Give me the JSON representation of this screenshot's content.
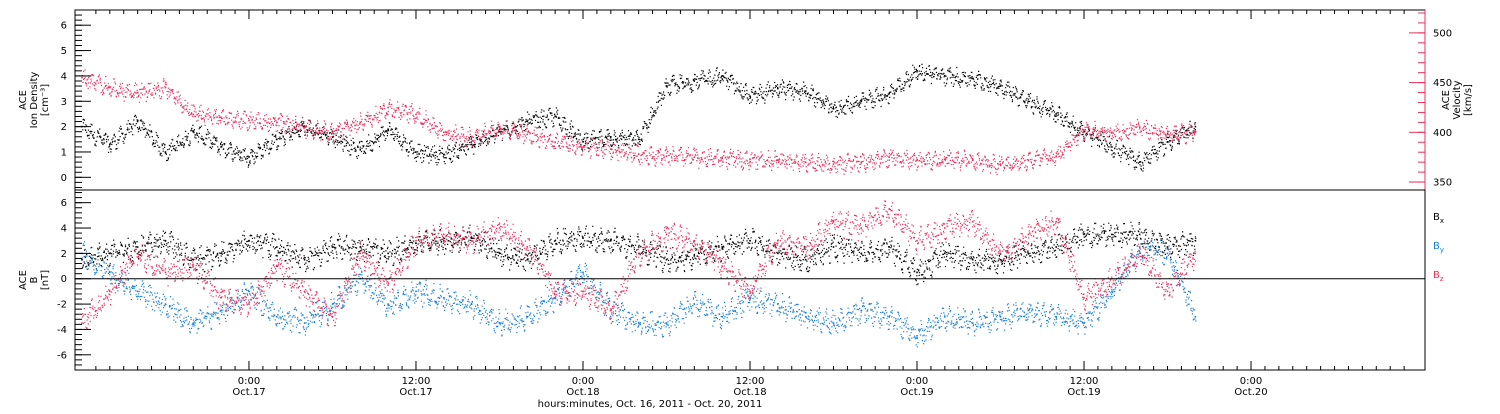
{
  "chart_data": {
    "type": "scatter",
    "x_axis": {
      "title": "hours:minutes, Oct. 16, 2011 - Oct. 20, 2011",
      "range_hours": [
        -12.5,
        84.5
      ],
      "ticks": [
        {
          "hour": 0,
          "time": "0:00",
          "date": "Oct.17"
        },
        {
          "hour": 12,
          "time": "12:00",
          "date": "Oct.17"
        },
        {
          "hour": 24,
          "time": "0:00",
          "date": "Oct.18"
        },
        {
          "hour": 36,
          "time": "12:00",
          "date": "Oct.18"
        },
        {
          "hour": 48,
          "time": "0:00",
          "date": "Oct.19"
        },
        {
          "hour": 60,
          "time": "12:00",
          "date": "Oct.19"
        },
        {
          "hour": 72,
          "time": "0:00",
          "date": "Oct.20"
        }
      ]
    },
    "panels": [
      {
        "id": "density-velocity",
        "left_axis": {
          "label_lines": [
            "ACE",
            "Ion Density",
            "[cm⁻³]"
          ],
          "ylim": [
            -0.5,
            6.6
          ],
          "ticks": [
            0,
            1,
            2,
            3,
            4,
            5,
            6
          ],
          "color": "#000000"
        },
        "right_axis": {
          "label_lines": [
            "ACE",
            "Velocity",
            "[km/s]"
          ],
          "ylim": [
            342,
            523
          ],
          "ticks": [
            350,
            400,
            450,
            500
          ],
          "color": "#e8305a"
        },
        "series": [
          {
            "axis": "left",
            "color": "#000000",
            "x": [
              -12,
              -10,
              -8,
              -6,
              -4,
              -2,
              0,
              2,
              4,
              6,
              8,
              10,
              12,
              14,
              16,
              18,
              20,
              22,
              24,
              26,
              28,
              30,
              32,
              34,
              36,
              38,
              40,
              42,
              44,
              46,
              48,
              50,
              52,
              54,
              56,
              58,
              60,
              62,
              64,
              66,
              68
            ],
            "y": [
              2.0,
              1.3,
              2.2,
              1.0,
              1.8,
              1.2,
              0.8,
              1.5,
              2.0,
              1.6,
              1.1,
              1.9,
              1.0,
              0.9,
              1.3,
              1.8,
              2.2,
              2.4,
              1.4,
              1.6,
              1.5,
              3.6,
              3.8,
              4.0,
              3.2,
              3.5,
              3.4,
              2.7,
              3.0,
              3.3,
              4.2,
              4.0,
              3.9,
              3.6,
              3.0,
              2.5,
              1.8,
              1.2,
              0.6,
              1.4,
              2.0
            ]
          },
          {
            "axis": "right",
            "color": "#e8305a",
            "x": [
              -12,
              -10,
              -8,
              -6,
              -4,
              -2,
              0,
              2,
              4,
              6,
              8,
              10,
              12,
              14,
              16,
              18,
              20,
              22,
              24,
              26,
              28,
              30,
              32,
              34,
              36,
              38,
              40,
              42,
              44,
              46,
              48,
              50,
              52,
              54,
              56,
              58,
              60,
              62,
              64,
              66,
              68
            ],
            "y": [
              455,
              445,
              440,
              445,
              418,
              415,
              412,
              410,
              405,
              400,
              410,
              425,
              418,
              400,
              395,
              405,
              398,
              390,
              385,
              383,
              378,
              376,
              375,
              374,
              373,
              372,
              370,
              368,
              370,
              375,
              372,
              373,
              372,
              368,
              372,
              376,
              402,
              400,
              405,
              398,
              400
            ]
          }
        ]
      },
      {
        "id": "magnetic-field",
        "left_axis": {
          "label_lines": [
            "ACE",
            "B",
            "[nT]"
          ],
          "ylim": [
            -7.2,
            7.0
          ],
          "ticks": [
            -6,
            -4,
            -2,
            0,
            2,
            4,
            6
          ],
          "color": "#000000"
        },
        "zero_line": true,
        "legend": [
          {
            "label": "B",
            "sub": "x",
            "color": "#000000"
          },
          {
            "label": "B",
            "sub": "y",
            "color": "#1a7fd4"
          },
          {
            "label": "B",
            "sub": "z",
            "color": "#e8305a"
          }
        ],
        "series": [
          {
            "name": "Bx",
            "color": "#000000",
            "x": [
              -12,
              -10,
              -8,
              -6,
              -4,
              -2,
              0,
              2,
              4,
              6,
              8,
              10,
              12,
              14,
              16,
              18,
              20,
              22,
              24,
              26,
              28,
              30,
              32,
              34,
              36,
              38,
              40,
              42,
              44,
              46,
              48,
              50,
              52,
              54,
              56,
              58,
              60,
              62,
              64,
              66,
              68
            ],
            "y": [
              1.5,
              2.0,
              2.5,
              3.0,
              1.5,
              2.0,
              3.0,
              2.5,
              1.5,
              2.5,
              2.5,
              2.0,
              2.8,
              3.0,
              3.2,
              2.0,
              1.5,
              3.0,
              3.2,
              3.0,
              2.5,
              1.5,
              1.8,
              2.5,
              3.0,
              2.0,
              1.5,
              2.5,
              2.0,
              2.5,
              0.5,
              2.0,
              1.5,
              1.5,
              2.0,
              2.5,
              3.5,
              3.5,
              3.5,
              2.5,
              3.0
            ]
          },
          {
            "name": "By",
            "color": "#1a7fd4",
            "x": [
              -12,
              -10,
              -8,
              -6,
              -4,
              -2,
              0,
              2,
              4,
              6,
              8,
              10,
              12,
              14,
              16,
              18,
              20,
              22,
              24,
              26,
              28,
              30,
              32,
              34,
              36,
              38,
              40,
              42,
              44,
              46,
              48,
              50,
              52,
              54,
              56,
              58,
              60,
              62,
              64,
              66,
              68
            ],
            "y": [
              2.0,
              0.5,
              -1.0,
              -2.0,
              -3.5,
              -2.5,
              -1.0,
              -3.0,
              -3.5,
              -2.0,
              0.0,
              -2.0,
              -1.0,
              -1.5,
              -2.0,
              -3.5,
              -3.0,
              -1.5,
              0.5,
              -2.5,
              -3.5,
              -3.5,
              -2.0,
              -3.0,
              -1.5,
              -2.0,
              -3.0,
              -3.5,
              -2.5,
              -3.0,
              -4.5,
              -3.0,
              -3.5,
              -3.0,
              -2.5,
              -3.0,
              -3.5,
              -1.0,
              2.5,
              2.0,
              -3.0
            ]
          },
          {
            "name": "Bz",
            "color": "#e8305a",
            "x": [
              -12,
              -10,
              -8,
              -6,
              -4,
              -2,
              0,
              2,
              4,
              6,
              8,
              10,
              12,
              14,
              16,
              18,
              20,
              22,
              24,
              26,
              28,
              30,
              32,
              34,
              36,
              38,
              40,
              42,
              44,
              46,
              48,
              50,
              52,
              54,
              56,
              58,
              60,
              62,
              64,
              66,
              68
            ],
            "y": [
              -3.5,
              -1.0,
              2.0,
              0.5,
              1.0,
              -1.5,
              -2.0,
              1.0,
              -1.0,
              -3.0,
              2.0,
              -0.5,
              3.0,
              3.5,
              3.0,
              4.0,
              2.5,
              -1.0,
              -1.0,
              -2.5,
              2.0,
              3.5,
              3.0,
              1.0,
              -1.0,
              3.0,
              2.5,
              4.5,
              4.0,
              5.5,
              3.0,
              4.0,
              4.5,
              2.0,
              3.5,
              4.5,
              -1.5,
              0.0,
              2.0,
              -1.0,
              2.0
            ]
          }
        ]
      }
    ]
  }
}
